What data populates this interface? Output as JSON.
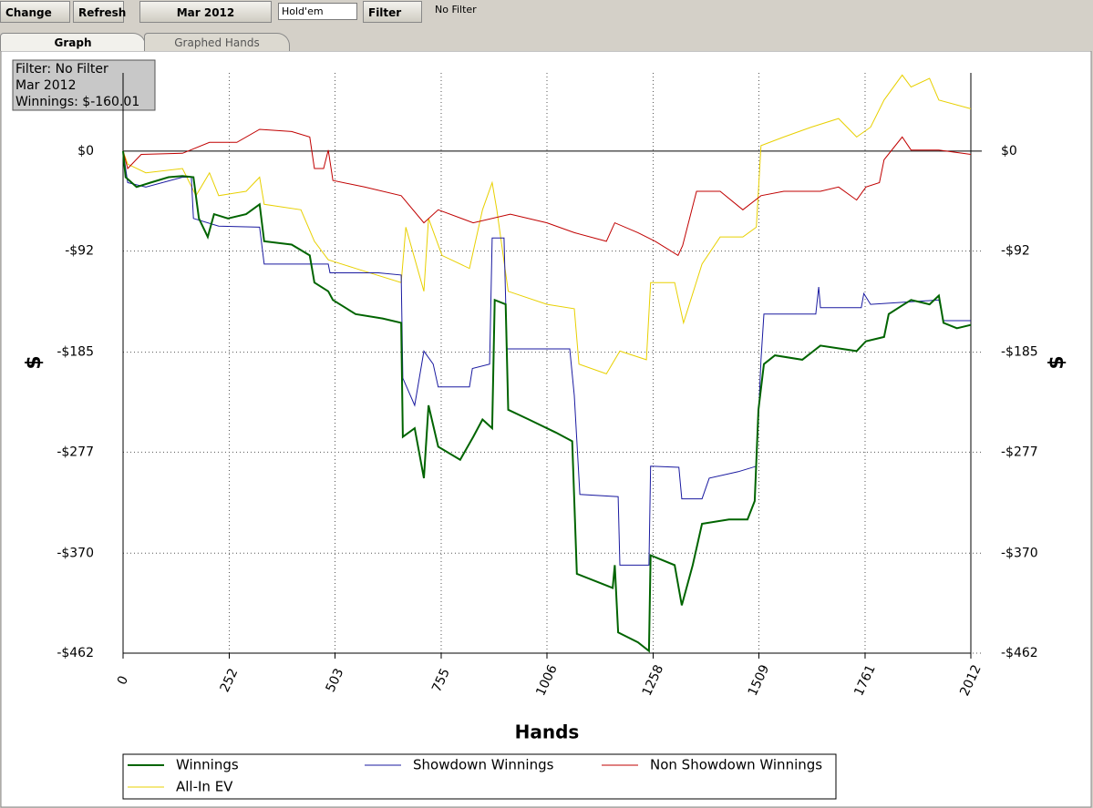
{
  "toolbar": {
    "change": "Change",
    "refresh": "Refresh",
    "period": "Mar 2012",
    "game": "Hold'em",
    "filter": "Filter",
    "filter_status": "No Filter"
  },
  "tabs": [
    "Graph",
    "Graphed Hands"
  ],
  "info_box": [
    "Filter: No Filter",
    "Mar 2012",
    "Winnings: $-160.01"
  ],
  "chart_data": {
    "type": "line",
    "xlabel": "Hands",
    "ylabel": "$",
    "xlim": [
      0,
      2012
    ],
    "xticks": [
      0,
      252,
      503,
      755,
      1006,
      1258,
      1509,
      1761,
      2012
    ],
    "ylim": [
      -462,
      72
    ],
    "yticks": [
      {
        "value": 0,
        "label": "$0"
      },
      {
        "value": -92,
        "label": "-$92"
      },
      {
        "value": -185,
        "label": "-$185"
      },
      {
        "value": -277,
        "label": "-$277"
      },
      {
        "value": -370,
        "label": "-$370"
      },
      {
        "value": -462,
        "label": "-$462"
      }
    ],
    "grid": true,
    "series": [
      {
        "name": "Winnings",
        "color": "#006400",
        "x": [
          0,
          6,
          32,
          65,
          108,
          141,
          167,
          180,
          201,
          216,
          249,
          292,
          324,
          335,
          400,
          443,
          454,
          487,
          498,
          552,
          616,
          660,
          664,
          692,
          714,
          725,
          748,
          800,
          831,
          853,
          876,
          882,
          908,
          914,
          963,
          1027,
          1066,
          1077,
          1136,
          1162,
          1167,
          1175,
          1222,
          1248,
          1252,
          1309,
          1326,
          1352,
          1374,
          1438,
          1482,
          1499,
          1508,
          1521,
          1547,
          1612,
          1655,
          1741,
          1763,
          1806,
          1817,
          1849,
          1870,
          1914,
          1936,
          1947,
          1979,
          2012
        ],
        "values": [
          0,
          -24,
          -33,
          -29,
          -24,
          -23,
          -24,
          -62,
          -79,
          -58,
          -62,
          -58,
          -49,
          -83,
          -86,
          -96,
          -121,
          -129,
          -137,
          -150,
          -154,
          -158,
          -263,
          -255,
          -301,
          -234,
          -272,
          -284,
          -263,
          -247,
          -255,
          -137,
          -141,
          -238,
          -247,
          -259,
          -267,
          -389,
          -398,
          -402,
          -381,
          -443,
          -452,
          -460,
          -372,
          -381,
          -418,
          -381,
          -343,
          -339,
          -339,
          -322,
          -238,
          -196,
          -188,
          -192,
          -179,
          -184,
          -175,
          -171,
          -150,
          -142,
          -137,
          -141,
          -133,
          -158,
          -163,
          -160
        ]
      },
      {
        "name": "Showdown Winnings",
        "color": "#1a1aa0",
        "x": [
          0,
          11,
          54,
          141,
          162,
          167,
          227,
          324,
          335,
          487,
          491,
          606,
          660,
          664,
          692,
          714,
          736,
          748,
          822,
          829,
          870,
          876,
          904,
          911,
          1060,
          1071,
          1084,
          1175,
          1179,
          1248,
          1252,
          1319,
          1326,
          1374,
          1391,
          1460,
          1503,
          1514,
          1521,
          1644,
          1651,
          1655,
          1752,
          1758,
          1774,
          1936,
          1947,
          2012
        ],
        "values": [
          0,
          -29,
          -33,
          -24,
          -24,
          -62,
          -69,
          -70,
          -104,
          -104,
          -112,
          -112,
          -114,
          -209,
          -234,
          -184,
          -196,
          -217,
          -217,
          -200,
          -196,
          -80,
          -80,
          -182,
          -182,
          -225,
          -316,
          -318,
          -381,
          -381,
          -290,
          -291,
          -320,
          -320,
          -301,
          -295,
          -290,
          -192,
          -150,
          -150,
          -125,
          -144,
          -144,
          -131,
          -141,
          -137,
          -156,
          -156
        ]
      },
      {
        "name": "Non Showdown Winnings",
        "color": "#c00000",
        "x": [
          0,
          11,
          43,
          141,
          205,
          270,
          324,
          400,
          443,
          454,
          476,
          487,
          498,
          573,
          660,
          714,
          748,
          831,
          919,
          1006,
          1071,
          1147,
          1167,
          1222,
          1263,
          1317,
          1328,
          1361,
          1417,
          1471,
          1514,
          1568,
          1655,
          1698,
          1741,
          1763,
          1795,
          1806,
          1849,
          1870,
          1936,
          2012
        ],
        "values": [
          0,
          -16,
          -3,
          -2,
          8,
          8,
          20,
          18,
          13,
          -16,
          -16,
          1,
          -27,
          -33,
          -41,
          -66,
          -54,
          -66,
          -58,
          -66,
          -75,
          -83,
          -66,
          -75,
          -83,
          -96,
          -87,
          -37,
          -37,
          -54,
          -41,
          -37,
          -37,
          -33,
          -45,
          -33,
          -29,
          -8,
          13,
          1,
          1,
          -3
        ]
      },
      {
        "name": "All-In EV",
        "color": "#e8d000",
        "x": [
          0,
          11,
          54,
          141,
          173,
          205,
          227,
          292,
          324,
          335,
          422,
          454,
          487,
          552,
          660,
          671,
          714,
          725,
          757,
          822,
          853,
          876,
          887,
          914,
          1006,
          1071,
          1082,
          1147,
          1179,
          1242,
          1252,
          1309,
          1330,
          1374,
          1417,
          1471,
          1503,
          1514,
          1568,
          1633,
          1698,
          1741,
          1774,
          1806,
          1849,
          1870,
          1914,
          1936,
          2012
        ],
        "values": [
          0,
          -12,
          -20,
          -16,
          -41,
          -20,
          -41,
          -37,
          -24,
          -49,
          -54,
          -83,
          -100,
          -108,
          -121,
          -70,
          -129,
          -62,
          -96,
          -108,
          -54,
          -29,
          -54,
          -129,
          -141,
          -145,
          -196,
          -205,
          -184,
          -192,
          -121,
          -121,
          -158,
          -104,
          -79,
          -79,
          -70,
          5,
          13,
          22,
          30,
          13,
          22,
          47,
          70,
          59,
          67,
          47,
          39
        ]
      }
    ]
  }
}
